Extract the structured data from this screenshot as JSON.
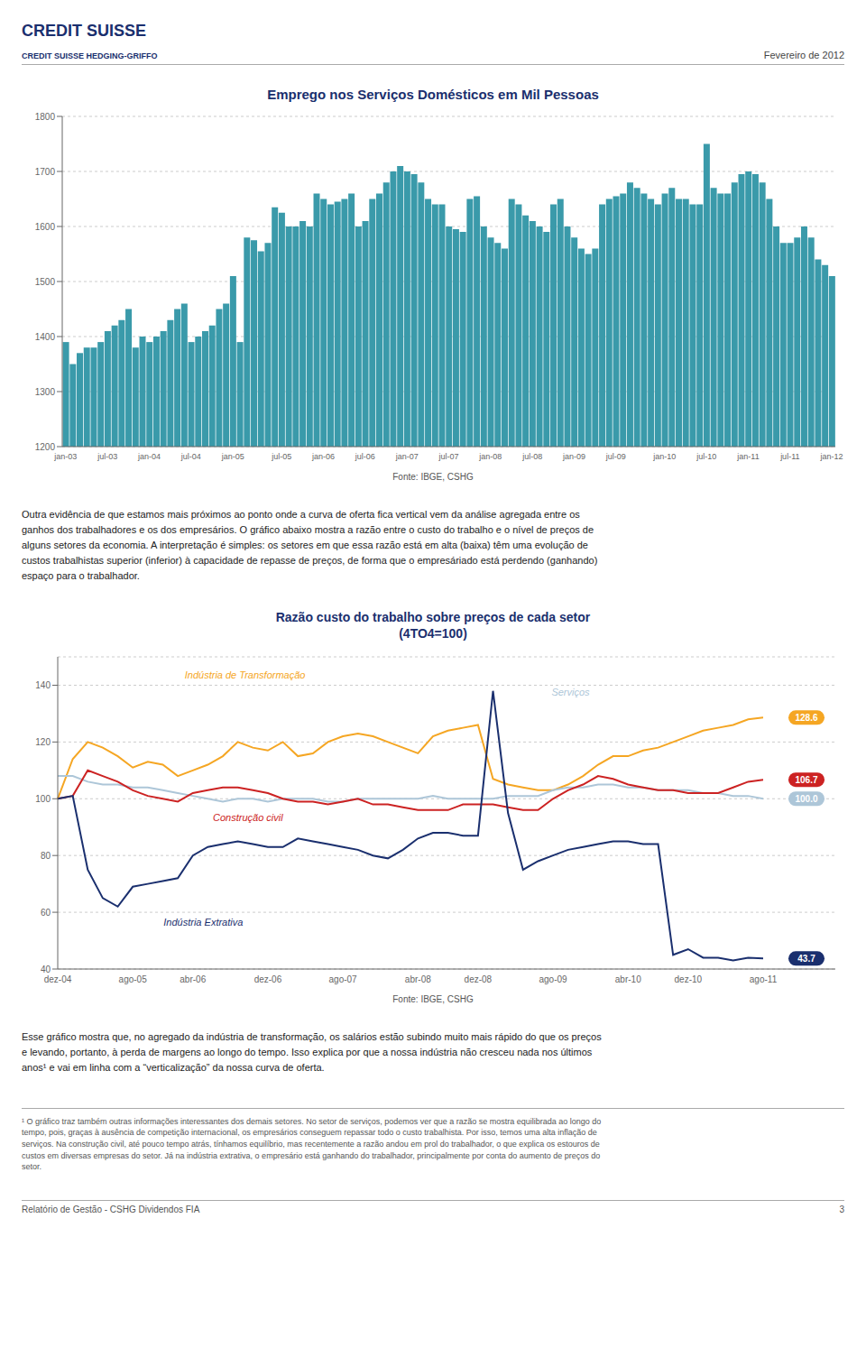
{
  "header": [
    "CREDIT SUISSE",
    "CREDIT SUISSE HEDGING-GRIFFO",
    "Fevereiro de 2012"
  ],
  "chart_data": [
    {
      "type": "bar",
      "title": "Emprego nos Serviços Domésticos em Mil Pessoas",
      "categories": [
        "jan-03",
        null,
        null,
        null,
        null,
        null,
        "jul-03",
        null,
        null,
        null,
        null,
        null,
        "jan-04",
        null,
        null,
        null,
        null,
        null,
        "jul-04",
        null,
        null,
        null,
        null,
        null,
        "jan-05",
        null,
        null,
        null,
        null,
        null,
        null,
        "jul-05",
        null,
        null,
        null,
        null,
        null,
        "jan-06",
        null,
        null,
        null,
        null,
        null,
        "jul-06",
        null,
        null,
        null,
        null,
        null,
        "jan-07",
        null,
        null,
        null,
        null,
        null,
        "jul-07",
        null,
        null,
        null,
        null,
        null,
        "jan-08",
        null,
        null,
        null,
        null,
        null,
        "jul-08",
        null,
        null,
        null,
        null,
        null,
        "jan-09",
        null,
        null,
        null,
        null,
        null,
        "jul-09",
        null,
        null,
        null,
        null,
        null,
        null,
        "jan-10",
        null,
        null,
        null,
        null,
        null,
        "jul-10",
        null,
        null,
        null,
        null,
        null,
        "jan-11",
        null,
        null,
        null,
        null,
        null,
        "jul-11",
        null,
        null,
        null,
        null,
        null,
        "jan-12"
      ],
      "values": [
        1390,
        1350,
        1370,
        1380,
        1380,
        1390,
        1410,
        1420,
        1430,
        1450,
        1380,
        1400,
        1390,
        1400,
        1410,
        1430,
        1450,
        1460,
        1390,
        1400,
        1410,
        1420,
        1450,
        1460,
        1510,
        1390,
        1580,
        1575,
        1555,
        1570,
        1635,
        1625,
        1600,
        1600,
        1610,
        1600,
        1660,
        1650,
        1640,
        1645,
        1650,
        1660,
        1600,
        1610,
        1650,
        1660,
        1680,
        1700,
        1710,
        1700,
        1695,
        1680,
        1650,
        1640,
        1640,
        1600,
        1595,
        1590,
        1650,
        1655,
        1600,
        1580,
        1570,
        1560,
        1650,
        1640,
        1620,
        1610,
        1600,
        1590,
        1640,
        1650,
        1600,
        1580,
        1560,
        1550,
        1560,
        1640,
        1650,
        1655,
        1660,
        1680,
        1670,
        1660,
        1650,
        1640,
        1660,
        1670,
        1650,
        1650,
        1640,
        1640,
        1750,
        1670,
        1660,
        1660,
        1680,
        1695,
        1700,
        1695,
        1680,
        1650,
        1600,
        1570,
        1570,
        1580,
        1600,
        1580,
        1540,
        1530,
        1510
      ],
      "color": "#3a9aaa",
      "ylim": [
        1200,
        1800
      ],
      "yticks": [
        1200,
        1300,
        1400,
        1500,
        1600,
        1700,
        1800
      ],
      "grid": true,
      "source": "Fonte: IBGE, CSHG"
    },
    {
      "type": "line",
      "title": "Razão custo do trabalho sobre preços de cada setor",
      "subtitle": "(4TO4=100)",
      "categories": [
        "dez-04",
        null,
        null,
        null,
        null,
        "ago-05",
        null,
        null,
        null,
        "abr-06",
        null,
        null,
        null,
        null,
        "dez-06",
        null,
        null,
        null,
        null,
        "ago-07",
        null,
        null,
        null,
        null,
        "abr-08",
        null,
        null,
        null,
        "dez-08",
        null,
        null,
        null,
        null,
        "ago-09",
        null,
        null,
        null,
        null,
        "abr-10",
        null,
        null,
        null,
        "dez-10",
        null,
        null,
        null,
        null,
        "ago-11"
      ],
      "series": [
        {
          "name": "Indústria de Transformação",
          "color": "#f5a623",
          "values": [
            100,
            114,
            120,
            118,
            115,
            111,
            113,
            112,
            108,
            110,
            112,
            115,
            120,
            118,
            117,
            120,
            115,
            116,
            120,
            122,
            123,
            122,
            120,
            118,
            116,
            122,
            124,
            125,
            126,
            107,
            105,
            104,
            103,
            103,
            105,
            108,
            112,
            115,
            115,
            117,
            118,
            120,
            122,
            124,
            125,
            126,
            128,
            128.6
          ]
        },
        {
          "name": "Serviços",
          "color": "#adc6d8",
          "values": [
            108,
            108,
            106,
            105,
            105,
            104,
            104,
            103,
            102,
            101,
            100,
            99,
            100,
            100,
            99,
            100,
            100,
            100,
            99,
            99,
            100,
            100,
            100,
            100,
            100,
            101,
            100,
            100,
            100,
            100,
            101,
            101,
            101,
            103,
            104,
            104,
            105,
            105,
            104,
            104,
            103,
            103,
            103,
            102,
            102,
            101,
            101,
            100.0
          ]
        },
        {
          "name": "Construção civil",
          "color": "#cc2222",
          "values": [
            100,
            101,
            110,
            108,
            106,
            103,
            101,
            100,
            99,
            102,
            103,
            104,
            104,
            103,
            102,
            100,
            99,
            99,
            98,
            99,
            100,
            98,
            98,
            97,
            96,
            96,
            96,
            98,
            98,
            98,
            97,
            96,
            96,
            100,
            103,
            105,
            108,
            107,
            105,
            104,
            103,
            103,
            102,
            102,
            102,
            104,
            106,
            106.7
          ]
        },
        {
          "name": "Indústria Extrativa",
          "color": "#1a2f6e",
          "values": [
            100,
            101,
            75,
            65,
            62,
            69,
            70,
            71,
            72,
            80,
            83,
            84,
            85,
            84,
            83,
            83,
            86,
            85,
            84,
            83,
            82,
            80,
            79,
            82,
            86,
            88,
            88,
            87,
            87,
            138,
            95,
            75,
            78,
            80,
            82,
            83,
            84,
            85,
            85,
            84,
            84,
            45,
            47,
            44,
            44,
            43,
            44,
            43.7
          ]
        }
      ],
      "ylim": [
        40,
        150
      ],
      "yticks": [
        40,
        60,
        80,
        100,
        120,
        140
      ],
      "grid": true,
      "annotations": [
        {
          "text": "128.6",
          "series": "Indústria de Transformação"
        },
        {
          "text": "106.7",
          "series": "Construção civil"
        },
        {
          "text": "100.0",
          "series": "Serviços"
        },
        {
          "text": "43.7",
          "series": "Indústria Extrativa"
        }
      ],
      "source": "Fonte: IBGE, CSHG"
    }
  ],
  "paragraphs": [
    [
      "Outra evidência de que estamos mais próximos ao ponto onde a curva de oferta fica vertical vem da análise agregada entre os",
      "ganhos dos trabalhadores e os dos empresários. O gráfico abaixo mostra a razão entre o custo do trabalho e o nível de preços de",
      "alguns setores da economia. A interpretação é simples: os setores em que essa razão está em alta (baixa) têm uma evolução de",
      "custos trabalhistas superior (inferior) à capacidade de repasse de preços, de forma que o empresáriado está perdendo (ganhando)",
      "espaço para o trabalhador."
    ],
    [
      "Esse gráfico mostra que, no agregado da indústria de transformação, os salários estão subindo muito mais rápido do que os preços",
      "e levando, portanto, à perda de margens ao longo do tempo. Isso explica por que a nossa indústria não cresceu nada nos últimos",
      "anos¹ e vai em linha com a “verticalização” da nossa curva de oferta."
    ]
  ],
  "footnote": [
    "¹ O gráfico traz também outras informações interessantes dos demais setores. No setor de serviços, podemos ver que a razão se mostra equilibrada ao longo do",
    "tempo, pois, graças à ausência de competição internacional, os empresários conseguem repassar todo o custo trabalhista. Por isso, temos uma alta inflação de",
    "serviços. Na construção civil, até pouco tempo atrás, tínhamos equilíbrio, mas recentemente a razão andou em prol do trabalhador, o que explica os estouros de",
    "custos em diversas empresas do setor. Já na indústria extrativa, o empresário está ganhando do trabalhador, principalmente por conta do aumento de preços do",
    "setor."
  ],
  "footer": [
    "Relatório de Gestão - CSHG Dividendos FIA",
    "3"
  ]
}
